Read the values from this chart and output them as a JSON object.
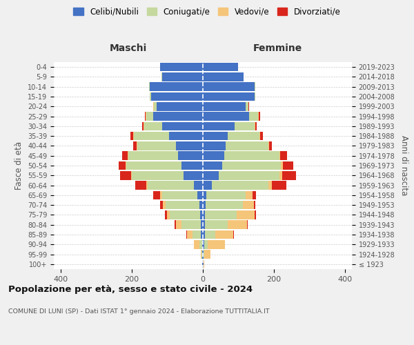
{
  "age_groups": [
    "100+",
    "95-99",
    "90-94",
    "85-89",
    "80-84",
    "75-79",
    "70-74",
    "65-69",
    "60-64",
    "55-59",
    "50-54",
    "45-49",
    "40-44",
    "35-39",
    "30-34",
    "25-29",
    "20-24",
    "15-19",
    "10-14",
    "5-9",
    "0-4"
  ],
  "birth_years": [
    "≤ 1923",
    "1924-1928",
    "1929-1933",
    "1934-1938",
    "1939-1943",
    "1944-1948",
    "1949-1953",
    "1954-1958",
    "1959-1963",
    "1964-1968",
    "1969-1973",
    "1974-1978",
    "1979-1983",
    "1984-1988",
    "1989-1993",
    "1994-1998",
    "1999-2003",
    "2004-2008",
    "2009-2013",
    "2014-2018",
    "2019-2023"
  ],
  "colors": {
    "celibe": "#4472C4",
    "coniugato": "#c5d89e",
    "vedovo": "#f5c57a",
    "divorziato": "#d9261c"
  },
  "maschi": {
    "celibe": [
      1,
      1,
      2,
      5,
      5,
      8,
      10,
      15,
      25,
      55,
      60,
      70,
      75,
      95,
      115,
      140,
      130,
      145,
      150,
      115,
      120
    ],
    "coniugato": [
      0,
      2,
      8,
      25,
      55,
      85,
      95,
      100,
      130,
      145,
      155,
      140,
      110,
      100,
      50,
      20,
      8,
      5,
      2,
      2,
      0
    ],
    "vedovo": [
      0,
      3,
      15,
      15,
      15,
      8,
      8,
      5,
      5,
      3,
      3,
      2,
      2,
      2,
      2,
      2,
      2,
      0,
      0,
      0,
      0
    ],
    "divorziato": [
      0,
      0,
      0,
      2,
      5,
      5,
      8,
      20,
      30,
      30,
      20,
      15,
      10,
      8,
      5,
      2,
      0,
      0,
      0,
      0,
      0
    ]
  },
  "femmine": {
    "celibe": [
      1,
      1,
      3,
      5,
      5,
      5,
      8,
      10,
      25,
      45,
      55,
      60,
      65,
      70,
      90,
      130,
      120,
      145,
      145,
      115,
      100
    ],
    "coniugato": [
      0,
      2,
      10,
      30,
      65,
      90,
      105,
      110,
      160,
      170,
      165,
      155,
      120,
      90,
      55,
      25,
      8,
      3,
      2,
      0,
      0
    ],
    "vedovo": [
      2,
      18,
      50,
      50,
      55,
      50,
      30,
      20,
      10,
      8,
      5,
      2,
      2,
      2,
      2,
      2,
      0,
      0,
      0,
      0,
      0
    ],
    "divorziato": [
      0,
      0,
      0,
      2,
      2,
      5,
      5,
      10,
      40,
      40,
      30,
      20,
      8,
      8,
      5,
      5,
      2,
      0,
      0,
      0,
      0
    ]
  },
  "title_main": "Popolazione per età, sesso e stato civile - 2024",
  "title_sub": "COMUNE DI LUNI (SP) - Dati ISTAT 1° gennaio 2024 - Elaborazione TUTTITALIA.IT",
  "xlabel_maschi": "Maschi",
  "xlabel_femmine": "Femmine",
  "ylabel": "Fasce di età",
  "ylabel_right": "Anni di nascita",
  "xlim": 420,
  "legend_labels": [
    "Celibi/Nubili",
    "Coniugati/e",
    "Vedovi/e",
    "Divorziati/e"
  ],
  "bg_color": "#f0f0f0",
  "plot_bg": "#ffffff",
  "grid_color": "#cccccc"
}
